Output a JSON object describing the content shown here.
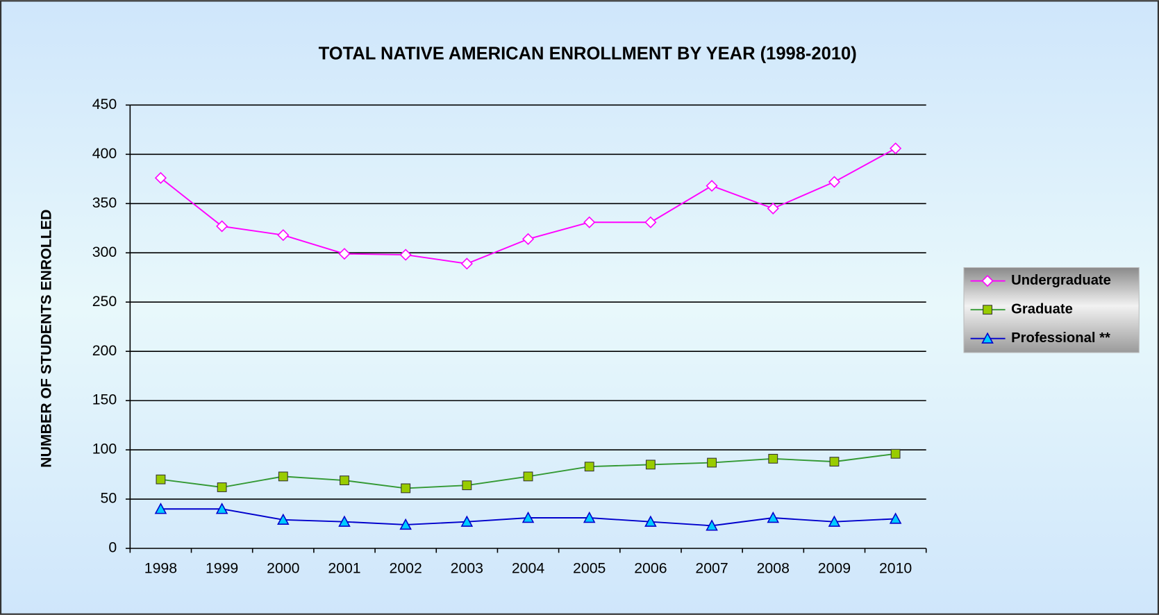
{
  "chart_data": {
    "type": "line",
    "title": "TOTAL NATIVE AMERICAN ENROLLMENT BY YEAR (1998-2010)",
    "y_label": "NUMBER  OF STUDENTS  ENROLLED",
    "categories": [
      "1998",
      "1999",
      "2000",
      "2001",
      "2002",
      "2003",
      "2004",
      "2005",
      "2006",
      "2007",
      "2008",
      "2009",
      "2010"
    ],
    "series": [
      {
        "name": "Undergraduate",
        "color": "#ff00ff",
        "marker": "diamond",
        "values": [
          376,
          327,
          318,
          299,
          298,
          289,
          314,
          331,
          331,
          368,
          345,
          372,
          406
        ]
      },
      {
        "name": "Graduate",
        "color": "#339933",
        "marker": "square",
        "values": [
          70,
          62,
          73,
          69,
          61,
          64,
          73,
          83,
          85,
          87,
          91,
          88,
          96
        ]
      },
      {
        "name": "Professional **",
        "color": "#0000cc",
        "marker": "triangle",
        "values": [
          40,
          40,
          29,
          27,
          24,
          27,
          31,
          31,
          27,
          23,
          31,
          27,
          30
        ]
      }
    ],
    "ylim": [
      0,
      450
    ],
    "yticks": [
      0,
      50,
      100,
      150,
      200,
      250,
      300,
      350,
      400,
      450
    ],
    "grid": true,
    "legend": "right"
  }
}
